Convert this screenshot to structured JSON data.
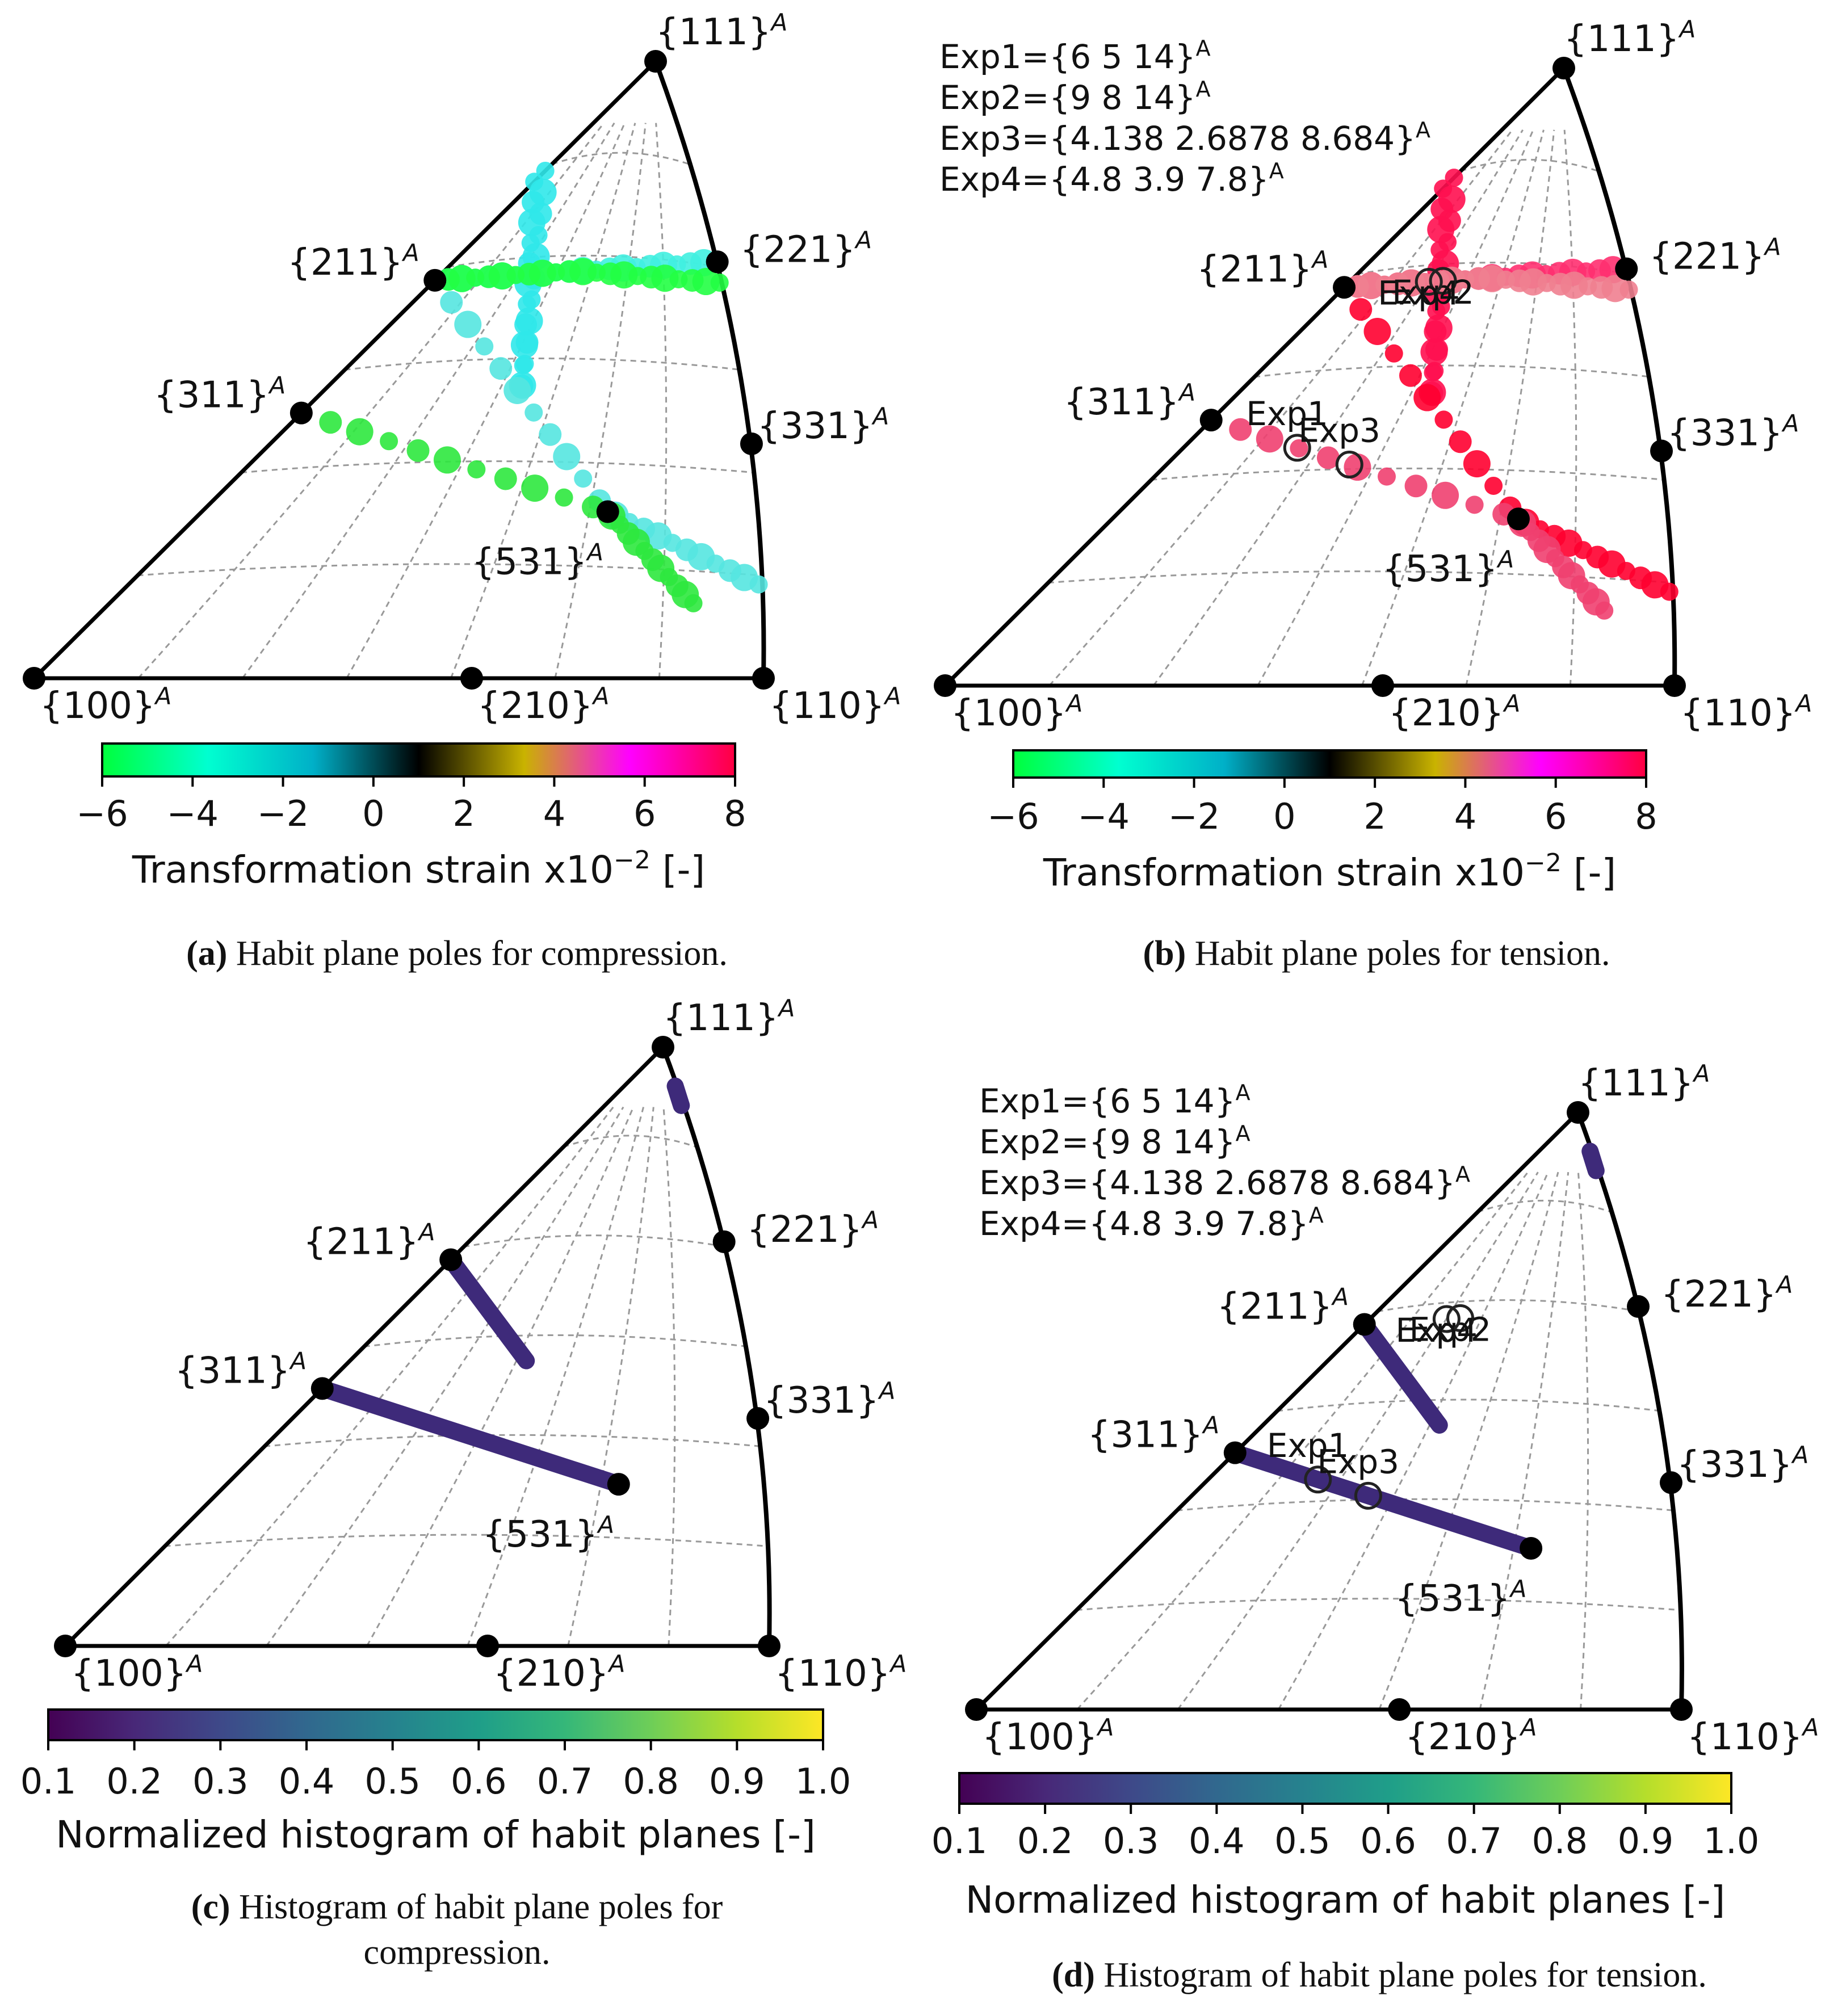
{
  "chart_data": [
    {
      "type": "scatter",
      "panel": "a",
      "poles": [
        {
          "label": "{111}",
          "sup": "A"
        },
        {
          "label": "{211}",
          "sup": "A"
        },
        {
          "label": "{221}",
          "sup": "A"
        },
        {
          "label": "{311}",
          "sup": "A"
        },
        {
          "label": "{331}",
          "sup": "A"
        },
        {
          "label": "{531}",
          "sup": "A"
        },
        {
          "label": "{100}",
          "sup": "A"
        },
        {
          "label": "{210}",
          "sup": "A"
        },
        {
          "label": "{110}",
          "sup": "A"
        }
      ],
      "colorbar": {
        "ticks": [
          "−6",
          "−4",
          "−2",
          "0",
          "2",
          "4",
          "6",
          "8"
        ],
        "range": [
          -6,
          8
        ],
        "label": "Transformation strain x10",
        "label_exp": "−2",
        "label_unit": " [-]",
        "colors": [
          "#00ff3c",
          "#00ffd0",
          "#00b0c8",
          "#000000",
          "#c9b300",
          "#ff00ff",
          "#ff0040"
        ]
      },
      "series": [
        {
          "branch": "upper-horizontal",
          "strain": -2.5,
          "color": "#40f0e0"
        },
        {
          "branch": "vertical-stem",
          "strain": -2.8,
          "color": "#30e8ea"
        },
        {
          "branch": "211-to-221",
          "strain": -5.5,
          "color": "#22ff44"
        },
        {
          "branch": "211-diagonal",
          "strain": -2.5,
          "color": "#55e5e0"
        },
        {
          "branch": "311-to-531",
          "strain": -5.8,
          "color": "#2ee83e"
        }
      ],
      "caption": {
        "tag": "(a)",
        "text": " Habit plane poles for compression."
      }
    },
    {
      "type": "scatter",
      "panel": "b",
      "legend": [
        "Exp1={6 5 14}",
        "Exp2={9 8 14}",
        "Exp3={4.138 2.6878 8.684}",
        "Exp4={4.8 3.9  7.8}"
      ],
      "legend_sup": "A",
      "poles": [
        {
          "label": "{111}",
          "sup": "A"
        },
        {
          "label": "{211}",
          "sup": "A"
        },
        {
          "label": "{221}",
          "sup": "A"
        },
        {
          "label": "{311}",
          "sup": "A"
        },
        {
          "label": "{331}",
          "sup": "A"
        },
        {
          "label": "{531}",
          "sup": "A"
        },
        {
          "label": "{100}",
          "sup": "A"
        },
        {
          "label": "{210}",
          "sup": "A"
        },
        {
          "label": "{110}",
          "sup": "A"
        }
      ],
      "experiments": [
        "Exp1",
        "Exp2",
        "Exp3",
        "Exp4"
      ],
      "colorbar": {
        "ticks": [
          "−6",
          "−4",
          "−2",
          "0",
          "2",
          "4",
          "6",
          "8"
        ],
        "range": [
          -6,
          8
        ],
        "label": "Transformation strain x10",
        "label_exp": "−2",
        "label_unit": " [-]",
        "colors": [
          "#00ff3c",
          "#00ffd0",
          "#00b0c8",
          "#000000",
          "#c9b300",
          "#ff00ff",
          "#ff0040"
        ]
      },
      "series": [
        {
          "branch": "upper-horizontal",
          "strain": 7.0,
          "color": "#ff3070"
        },
        {
          "branch": "211-to-221",
          "strain": 7.5,
          "color": "#ff1050"
        },
        {
          "branch": "211-diagonal",
          "strain": 5.0,
          "color": "#f08090"
        },
        {
          "branch": "311-to-531",
          "strain": 7.8,
          "color": "#ff0030"
        },
        {
          "branch": "311-long",
          "strain": 6.5,
          "color": "#f04070"
        }
      ],
      "caption": {
        "tag": "(b)",
        "text": " Habit plane poles for tension."
      }
    },
    {
      "type": "heatmap",
      "panel": "c",
      "poles": [
        {
          "label": "{111}",
          "sup": "A"
        },
        {
          "label": "{211}",
          "sup": "A"
        },
        {
          "label": "{221}",
          "sup": "A"
        },
        {
          "label": "{311}",
          "sup": "A"
        },
        {
          "label": "{331}",
          "sup": "A"
        },
        {
          "label": "{531}",
          "sup": "A"
        },
        {
          "label": "{100}",
          "sup": "A"
        },
        {
          "label": "{210}",
          "sup": "A"
        },
        {
          "label": "{110}",
          "sup": "A"
        }
      ],
      "colorbar": {
        "ticks": [
          "0.1",
          "0.2",
          "0.3",
          "0.4",
          "0.5",
          "0.6",
          "0.7",
          "0.8",
          "0.9",
          "1.0"
        ],
        "range": [
          0.1,
          1.0
        ],
        "label": "Normalized histogram of habit planes [-]",
        "colors": [
          "#440154",
          "#482878",
          "#3e4989",
          "#31688e",
          "#26828e",
          "#1f9e89",
          "#35b779",
          "#6ece58",
          "#b5de2b",
          "#fde725"
        ]
      },
      "caption": {
        "tag": "(c)",
        "text": " Histogram of habit plane poles for",
        "text2": "compression."
      }
    },
    {
      "type": "heatmap",
      "panel": "d",
      "legend": [
        "Exp1={6 5 14}",
        "Exp2={9 8 14}",
        "Exp3={4.138 2.6878 8.684}",
        "Exp4={4.8 3.9  7.8}"
      ],
      "legend_sup": "A",
      "poles": [
        {
          "label": "{111}",
          "sup": "A"
        },
        {
          "label": "{211}",
          "sup": "A"
        },
        {
          "label": "{221}",
          "sup": "A"
        },
        {
          "label": "{311}",
          "sup": "A"
        },
        {
          "label": "{331}",
          "sup": "A"
        },
        {
          "label": "{531}",
          "sup": "A"
        },
        {
          "label": "{100}",
          "sup": "A"
        },
        {
          "label": "{210}",
          "sup": "A"
        },
        {
          "label": "{110}",
          "sup": "A"
        }
      ],
      "experiments": [
        "Exp1",
        "Exp2",
        "Exp3",
        "Exp4"
      ],
      "colorbar": {
        "ticks": [
          "0.1",
          "0.2",
          "0.3",
          "0.4",
          "0.5",
          "0.6",
          "0.7",
          "0.8",
          "0.9",
          "1.0"
        ],
        "range": [
          0.1,
          1.0
        ],
        "label": "Normalized histogram of habit planes [-]",
        "colors": [
          "#440154",
          "#482878",
          "#3e4989",
          "#31688e",
          "#26828e",
          "#1f9e89",
          "#35b779",
          "#6ece58",
          "#b5de2b",
          "#fde725"
        ]
      },
      "caption": {
        "tag": "(d)",
        "text": " Histogram of habit plane poles for tension."
      }
    }
  ]
}
